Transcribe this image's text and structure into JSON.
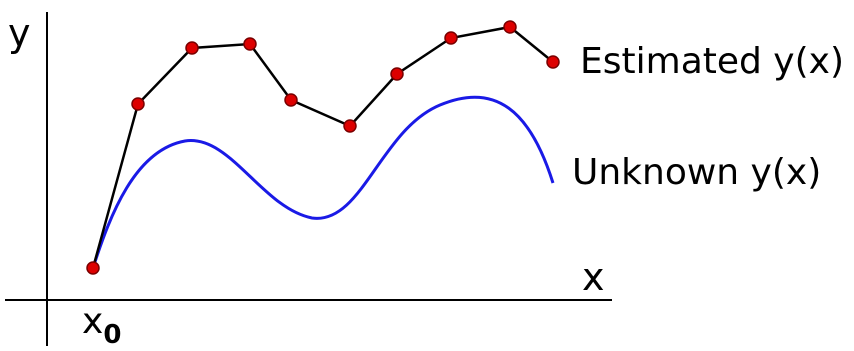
{
  "labels": {
    "y_axis": "y",
    "x_axis": "x",
    "x0_base": "x",
    "x0_sub": "0",
    "estimated": "Estimated y(x)",
    "unknown": "Unknown y(x)"
  },
  "colors": {
    "axis": "#000000",
    "estimated_line": "#000000",
    "estimated_point_fill": "#dd0000",
    "estimated_point_stroke": "#7a0000",
    "unknown_curve": "#1a1ae6"
  }
}
